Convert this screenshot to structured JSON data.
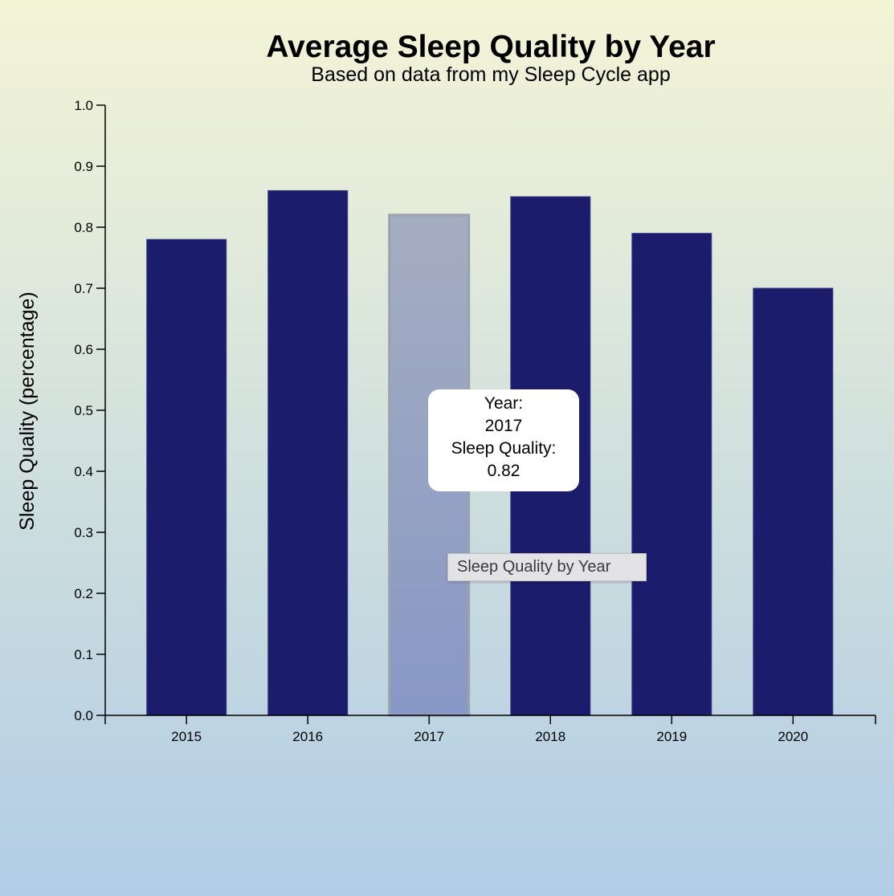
{
  "chart_data": {
    "type": "bar",
    "title": "Average Sleep Quality by Year",
    "subtitle": "Based on data from my Sleep Cycle app",
    "ylabel": "Sleep Quality (percentage)",
    "xlabel": "",
    "categories": [
      "2015",
      "2016",
      "2017",
      "2018",
      "2019",
      "2020"
    ],
    "values": [
      0.78,
      0.86,
      0.82,
      0.85,
      0.79,
      0.7
    ],
    "ylim": [
      0,
      1.0
    ],
    "yticks": [
      "0.0",
      "0.1",
      "0.2",
      "0.3",
      "0.4",
      "0.5",
      "0.6",
      "0.7",
      "0.8",
      "0.9",
      "1.0"
    ],
    "highlighted_category": "2017",
    "grid": false,
    "colors": {
      "bar": "#1b1c6c",
      "highlight_top": "#a5adc1",
      "highlight_bottom": "#8898c6",
      "highlight_stroke": "#9aa3ad",
      "axis": "#000000"
    }
  },
  "tooltip": {
    "year_label": "Year:",
    "year_value": "2017",
    "quality_label": "Sleep Quality:",
    "quality_value": "0.82"
  },
  "native_tooltip": {
    "text": "Sleep Quality by Year"
  }
}
